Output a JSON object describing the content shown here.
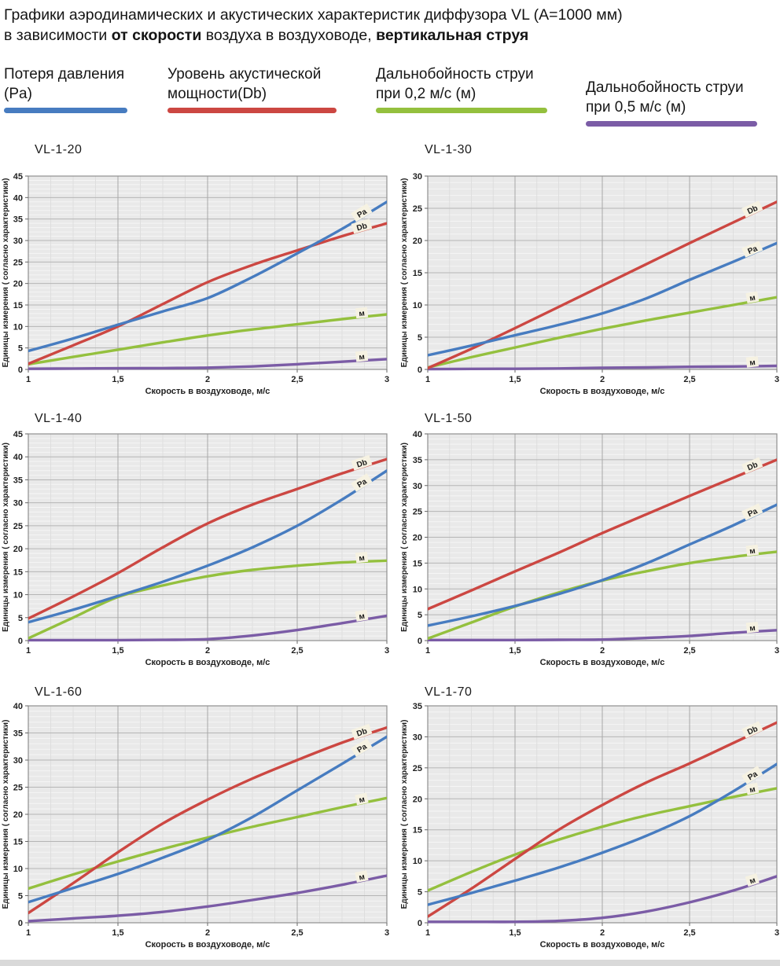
{
  "page": {
    "title_line1": "Графики аэродинамических и акустических характеристик  диффузора VL (A=1000 мм)",
    "title_line2": {
      "prefix": "в зависимости ",
      "bold1": "от скорости",
      "middle": " воздуха в воздуховоде, ",
      "bold2": "вертикальная струя"
    }
  },
  "legend": {
    "items": [
      {
        "line1": "Потеря давления",
        "line2": "(Pa)",
        "color": "#477CC0"
      },
      {
        "line1": "Уровень акустической",
        "line2": "мощности(Db)",
        "color": "#CC4742"
      },
      {
        "line1": "Дальнобойность струи",
        "line2": "при 0,2 м/с (м)",
        "color": "#94C03E"
      },
      {
        "line1": "Дальнобойность струи",
        "line2": "при 0,5 м/с (м)",
        "color": "#7B5CA6"
      }
    ]
  },
  "axes": {
    "xlabel": "Скорость в воздуховоде, м/с",
    "ylabel": "Единицы измерения ( согласно характеристики)",
    "xtick_values": [
      1,
      1.5,
      2,
      2.5,
      3
    ],
    "xtick_labels": [
      "1",
      "1,5",
      "2",
      "2,5",
      "3"
    ]
  },
  "chart_data": [
    {
      "type": "line",
      "title": "VL-1-20",
      "xlabel": "Скорость в воздуховоде, м/с",
      "ylabel": "Единицы измерения ( согласно характеристики)",
      "xlim": [
        1,
        3
      ],
      "ylim": [
        0,
        45
      ],
      "ytick_step": 5,
      "x": [
        1,
        1.25,
        1.5,
        1.75,
        2,
        2.25,
        2.5,
        2.75,
        3
      ],
      "series": [
        {
          "name": "Потеря давления (Pa)",
          "label": "Pa",
          "color": "#477CC0",
          "values": [
            4.3,
            7.2,
            10.4,
            13.5,
            16.6,
            21.5,
            27.0,
            32.7,
            39.0
          ]
        },
        {
          "name": "Уровень акустической мощности (Db)",
          "label": "Db",
          "color": "#CC4742",
          "values": [
            1.3,
            5.6,
            10.0,
            15.2,
            20.3,
            24.3,
            27.7,
            31.0,
            34.0
          ]
        },
        {
          "name": "Дальнобойность струи при 0,2 м/с (м)",
          "label": "м",
          "color": "#94C03E",
          "values": [
            1.2,
            2.9,
            4.6,
            6.3,
            7.9,
            9.3,
            10.5,
            11.7,
            12.8
          ]
        },
        {
          "name": "Дальнобойность струи при 0,5 м/с (м)",
          "label": "м",
          "color": "#7B5CA6",
          "values": [
            0.15,
            0.2,
            0.25,
            0.3,
            0.4,
            0.7,
            1.2,
            1.8,
            2.4
          ]
        }
      ]
    },
    {
      "type": "line",
      "title": "VL-1-30",
      "xlabel": "Скорость в воздуховоде, м/с",
      "ylabel": "Единицы измерения ( согласно характеристики)",
      "xlim": [
        1,
        3
      ],
      "ylim": [
        0,
        30
      ],
      "ytick_step": 5,
      "x": [
        1,
        1.25,
        1.5,
        1.75,
        2,
        2.25,
        2.5,
        2.75,
        3
      ],
      "series": [
        {
          "name": "Потеря давления (Pa)",
          "label": "Pa",
          "color": "#477CC0",
          "values": [
            2.2,
            3.7,
            5.3,
            6.9,
            8.7,
            11.0,
            13.9,
            16.7,
            19.6
          ]
        },
        {
          "name": "Уровень акустической мощности (Db)",
          "label": "Db",
          "color": "#CC4742",
          "values": [
            0.2,
            3.2,
            6.4,
            9.7,
            13.0,
            16.3,
            19.6,
            22.8,
            26.0
          ]
        },
        {
          "name": "Дальнобойность струи при 0,2 м/с (м)",
          "label": "м",
          "color": "#94C03E",
          "values": [
            0.3,
            1.9,
            3.4,
            4.9,
            6.3,
            7.6,
            8.8,
            10.0,
            11.2
          ]
        },
        {
          "name": "Дальнобойность струи при 0,5 м/с (м)",
          "label": "м",
          "color": "#7B5CA6",
          "values": [
            0.05,
            0.08,
            0.1,
            0.15,
            0.25,
            0.3,
            0.4,
            0.45,
            0.55
          ]
        }
      ]
    },
    {
      "type": "line",
      "title": "VL-1-40",
      "xlabel": "Скорость в воздуховоде, м/с",
      "ylabel": "Единицы измерения ( согласно характеристики)",
      "xlim": [
        1,
        3
      ],
      "ylim": [
        0,
        45
      ],
      "ytick_step": 5,
      "x": [
        1,
        1.25,
        1.5,
        1.75,
        2,
        2.25,
        2.5,
        2.75,
        3
      ],
      "series": [
        {
          "name": "Потеря давления (Pa)",
          "label": "Pa",
          "color": "#477CC0",
          "values": [
            4.0,
            6.7,
            9.7,
            12.8,
            16.3,
            20.3,
            25.0,
            30.7,
            37.0
          ]
        },
        {
          "name": "Уровень акустической мощности (Db)",
          "label": "Db",
          "color": "#CC4742",
          "values": [
            4.8,
            9.6,
            14.7,
            20.3,
            25.5,
            29.6,
            33.0,
            36.4,
            39.5
          ]
        },
        {
          "name": "Дальнобойность струи при 0,2 м/с (м)",
          "label": "м",
          "color": "#94C03E",
          "values": [
            0.5,
            5.0,
            9.5,
            12.0,
            14.0,
            15.4,
            16.3,
            17.0,
            17.4
          ]
        },
        {
          "name": "Дальнобойность струи при 0,5 м/с (м)",
          "label": "м",
          "color": "#7B5CA6",
          "values": [
            0.1,
            0.1,
            0.1,
            0.15,
            0.3,
            1.1,
            2.3,
            3.8,
            5.4
          ]
        }
      ]
    },
    {
      "type": "line",
      "title": "VL-1-50",
      "xlabel": "Скорость в воздуховоде, м/с",
      "ylabel": "Единицы измерения ( согласно характеристики)",
      "xlim": [
        1,
        3
      ],
      "ylim": [
        0,
        40
      ],
      "ytick_step": 5,
      "x": [
        1,
        1.25,
        1.5,
        1.75,
        2,
        2.25,
        2.5,
        2.75,
        3
      ],
      "series": [
        {
          "name": "Потеря давления (Pa)",
          "label": "Pa",
          "color": "#477CC0",
          "values": [
            2.9,
            4.7,
            6.7,
            9.0,
            11.7,
            14.9,
            18.6,
            22.3,
            26.3
          ]
        },
        {
          "name": "Уровень акустической мощности (Db)",
          "label": "Db",
          "color": "#CC4742",
          "values": [
            6.1,
            9.7,
            13.4,
            17.0,
            20.8,
            24.4,
            28.0,
            31.5,
            35.0
          ]
        },
        {
          "name": "Дальнобойность струи при 0,2 м/с (м)",
          "label": "м",
          "color": "#94C03E",
          "values": [
            0.4,
            3.5,
            6.6,
            9.3,
            11.6,
            13.4,
            15.0,
            16.2,
            17.2
          ]
        },
        {
          "name": "Дальнобойность струи при 0,5 м/с (м)",
          "label": "м",
          "color": "#7B5CA6",
          "values": [
            0.1,
            0.1,
            0.1,
            0.15,
            0.2,
            0.5,
            0.9,
            1.5,
            2.0
          ]
        }
      ]
    },
    {
      "type": "line",
      "title": "VL-1-60",
      "xlabel": "Скорость в воздуховоде, м/с",
      "ylabel": "Единицы измерения ( согласно характеристики)",
      "xlim": [
        1,
        3
      ],
      "ylim": [
        0,
        40
      ],
      "ytick_step": 5,
      "x": [
        1,
        1.25,
        1.5,
        1.75,
        2,
        2.25,
        2.5,
        2.75,
        3
      ],
      "series": [
        {
          "name": "Потеря давления (Pa)",
          "label": "Pa",
          "color": "#477CC0",
          "values": [
            3.8,
            6.4,
            9.0,
            12.0,
            15.3,
            19.5,
            24.4,
            29.3,
            34.3
          ]
        },
        {
          "name": "Уровень акустической мощности (Db)",
          "label": "Db",
          "color": "#CC4742",
          "values": [
            1.8,
            7.3,
            13.0,
            18.3,
            22.7,
            26.6,
            30.0,
            33.2,
            36.0
          ]
        },
        {
          "name": "Дальнобойность струи при 0,2 м/с (м)",
          "label": "м",
          "color": "#94C03E",
          "values": [
            6.3,
            8.9,
            11.3,
            13.6,
            15.7,
            17.7,
            19.5,
            21.3,
            23.0
          ]
        },
        {
          "name": "Дальнобойность струи при 0,5 м/с (м)",
          "label": "м",
          "color": "#7B5CA6",
          "values": [
            0.3,
            0.8,
            1.3,
            2.0,
            3.0,
            4.2,
            5.5,
            7.0,
            8.7
          ]
        }
      ]
    },
    {
      "type": "line",
      "title": "VL-1-70",
      "xlabel": "Скорость в воздуховоде, м/с",
      "ylabel": "Единицы измерения ( согласно характеристики)",
      "xlim": [
        1,
        3
      ],
      "ylim": [
        0,
        35
      ],
      "ytick_step": 5,
      "x": [
        1,
        1.25,
        1.5,
        1.75,
        2,
        2.25,
        2.5,
        2.75,
        3
      ],
      "series": [
        {
          "name": "Потеря давления (Pa)",
          "label": "Pa",
          "color": "#477CC0",
          "values": [
            2.9,
            4.8,
            6.8,
            8.9,
            11.3,
            14.0,
            17.2,
            21.2,
            25.6
          ]
        },
        {
          "name": "Уровень акустической мощности (Db)",
          "label": "Db",
          "color": "#CC4742",
          "values": [
            1.0,
            5.5,
            10.3,
            15.0,
            19.0,
            22.6,
            25.7,
            29.0,
            32.3
          ]
        },
        {
          "name": "Дальнобойность струи при 0,2 м/с (м)",
          "label": "м",
          "color": "#94C03E",
          "values": [
            5.2,
            8.2,
            11.0,
            13.4,
            15.5,
            17.3,
            18.8,
            20.3,
            21.7
          ]
        },
        {
          "name": "Дальнобойность струи при 0,5 м/с (м)",
          "label": "м",
          "color": "#7B5CA6",
          "values": [
            0.15,
            0.15,
            0.15,
            0.3,
            0.8,
            1.8,
            3.3,
            5.2,
            7.5
          ]
        }
      ]
    }
  ]
}
